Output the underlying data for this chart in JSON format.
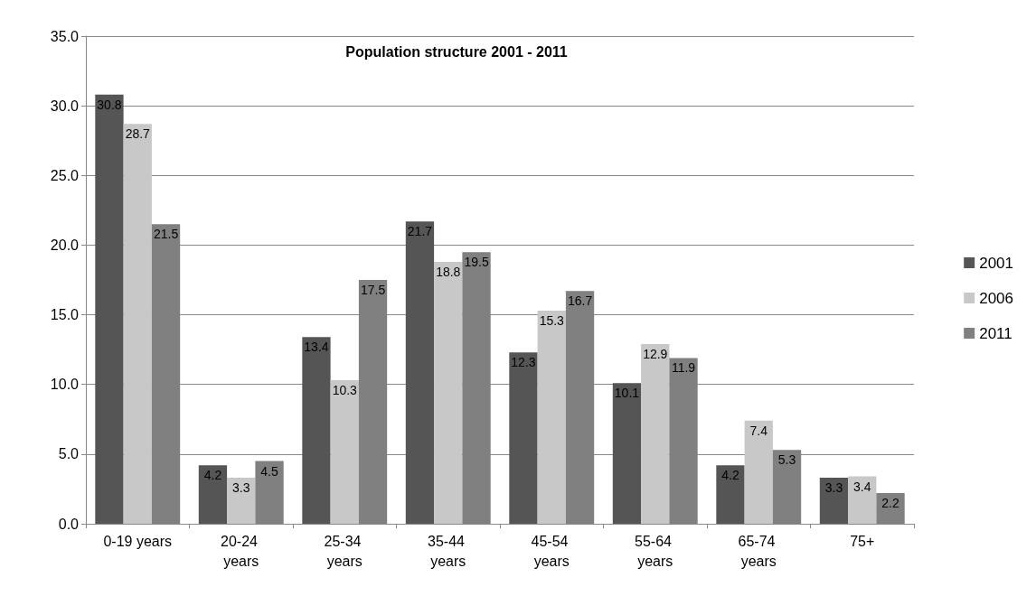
{
  "chart_data": {
    "type": "bar",
    "title": "Population structure 2001 - 2011",
    "categories": [
      "0-19 years",
      "20-24 years",
      "25-34 years",
      "35-44 years",
      "45-54 years",
      "55-64 years",
      "65-74 years",
      "75+"
    ],
    "series": [
      {
        "name": "2001",
        "color": "#555555",
        "values": [
          30.8,
          4.2,
          13.4,
          21.7,
          12.3,
          10.1,
          4.2,
          3.3
        ]
      },
      {
        "name": "2006",
        "color": "#c8c8c8",
        "values": [
          28.7,
          3.3,
          10.3,
          18.8,
          15.3,
          12.9,
          7.4,
          3.4
        ]
      },
      {
        "name": "2011",
        "color": "#808080",
        "values": [
          21.5,
          4.5,
          17.5,
          19.5,
          16.7,
          11.9,
          5.3,
          2.2
        ]
      }
    ],
    "ylim": [
      0,
      35
    ],
    "yticks": [
      {
        "value": 0,
        "label": "0.0"
      },
      {
        "value": 5,
        "label": "5.0"
      },
      {
        "value": 10,
        "label": "10.0"
      },
      {
        "value": 15,
        "label": "15.0"
      },
      {
        "value": 20,
        "label": "20.0"
      },
      {
        "value": 25,
        "label": "25.0"
      },
      {
        "value": 30,
        "label": "30.0"
      },
      {
        "value": 35,
        "label": "35.0"
      }
    ],
    "grid": "y",
    "legend": "right",
    "data_labels": true
  }
}
